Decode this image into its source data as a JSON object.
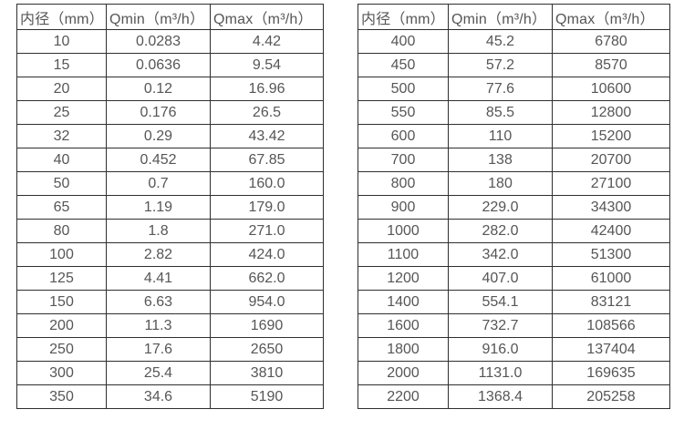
{
  "page": {
    "background_color": "#ffffff",
    "text_color": "#565656",
    "border_color": "#2f2f2f"
  },
  "tables": [
    {
      "name": "small-diameter-flow-table",
      "headers": [
        "内径（mm）",
        "Qmin（m³/h）",
        "Qmax（m³/h）"
      ],
      "rows": [
        [
          "10",
          "0.0283",
          "4.42"
        ],
        [
          "15",
          "0.0636",
          "9.54"
        ],
        [
          "20",
          "0.12",
          "16.96"
        ],
        [
          "25",
          "0.176",
          "26.5"
        ],
        [
          "32",
          "0.29",
          "43.42"
        ],
        [
          "40",
          "0.452",
          "67.85"
        ],
        [
          "50",
          "0.7",
          "160.0"
        ],
        [
          "65",
          "1.19",
          "179.0"
        ],
        [
          "80",
          "1.8",
          "271.0"
        ],
        [
          "100",
          "2.82",
          "424.0"
        ],
        [
          "125",
          "4.41",
          "662.0"
        ],
        [
          "150",
          "6.63",
          "954.0"
        ],
        [
          "200",
          "11.3",
          "1690"
        ],
        [
          "250",
          "17.6",
          "2650"
        ],
        [
          "300",
          "25.4",
          "3810"
        ],
        [
          "350",
          "34.6",
          "5190"
        ]
      ]
    },
    {
      "name": "large-diameter-flow-table",
      "headers": [
        "内径（mm）",
        "Qmin（m³/h）",
        "Qmax（m³/h）"
      ],
      "rows": [
        [
          "400",
          "45.2",
          "6780"
        ],
        [
          "450",
          "57.2",
          "8570"
        ],
        [
          "500",
          "77.6",
          "10600"
        ],
        [
          "550",
          "85.5",
          "12800"
        ],
        [
          "600",
          "110",
          "15200"
        ],
        [
          "700",
          "138",
          "20700"
        ],
        [
          "800",
          "180",
          "27100"
        ],
        [
          "900",
          "229.0",
          "34300"
        ],
        [
          "1000",
          "282.0",
          "42400"
        ],
        [
          "1100",
          "342.0",
          "51300"
        ],
        [
          "1200",
          "407.0",
          "61000"
        ],
        [
          "1400",
          "554.1",
          "83121"
        ],
        [
          "1600",
          "732.7",
          "108566"
        ],
        [
          "1800",
          "916.0",
          "137404"
        ],
        [
          "2000",
          "1131.0",
          "169635"
        ],
        [
          "2200",
          "1368.4",
          "205258"
        ]
      ]
    }
  ]
}
